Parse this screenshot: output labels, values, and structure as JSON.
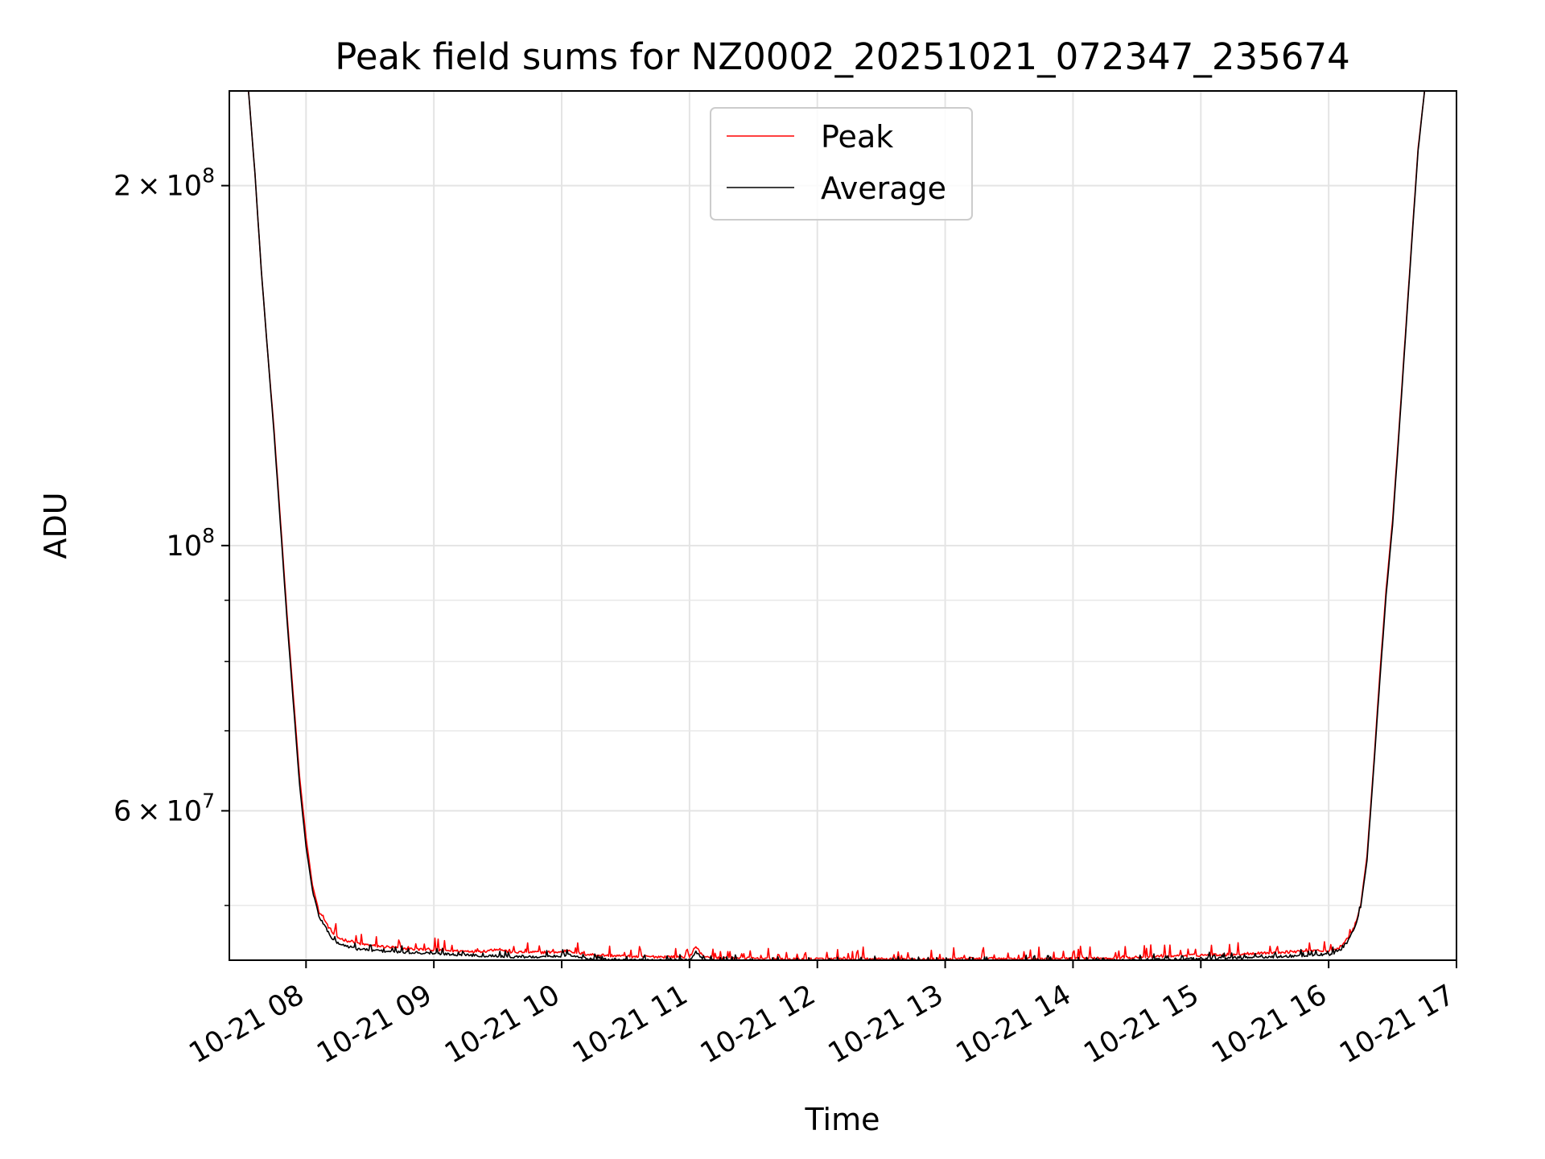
{
  "chart_data": {
    "type": "line",
    "title": "Peak field sums for NZ0002_20251021_072347_235674",
    "xlabel": "Time",
    "ylabel": "ADU",
    "yscale": "log",
    "xlim_hours": [
      7.4,
      17.0
    ],
    "ylim": [
      45000000,
      240000000
    ],
    "grid": true,
    "legend_position": "top-center",
    "x_ticks": [
      {
        "value": 8,
        "label": "10-21 08"
      },
      {
        "value": 9,
        "label": "10-21 09"
      },
      {
        "value": 10,
        "label": "10-21 10"
      },
      {
        "value": 11,
        "label": "10-21 11"
      },
      {
        "value": 12,
        "label": "10-21 12"
      },
      {
        "value": 13,
        "label": "10-21 13"
      },
      {
        "value": 14,
        "label": "10-21 14"
      },
      {
        "value": 15,
        "label": "10-21 15"
      },
      {
        "value": 16,
        "label": "10-21 16"
      },
      {
        "value": 17,
        "label": "10-21 17"
      }
    ],
    "y_ticks": [
      {
        "value": 60000000,
        "mantissa": "6",
        "times": "×",
        "base": "10",
        "exp": "7"
      },
      {
        "value": 100000000,
        "mantissa": "",
        "times": "",
        "base": "10",
        "exp": "8"
      },
      {
        "value": 200000000,
        "mantissa": "2",
        "times": "×",
        "base": "10",
        "exp": "8"
      }
    ],
    "y_minor_ticks": [
      50000000,
      70000000,
      80000000,
      90000000
    ],
    "series": [
      {
        "name": "Peak",
        "color": "#ff0000",
        "x": [
          7.4,
          7.55,
          7.6,
          7.65,
          7.7,
          7.75,
          7.8,
          7.85,
          7.9,
          7.95,
          8.0,
          8.05,
          8.1,
          8.15,
          8.2,
          8.25,
          8.3,
          8.4,
          8.5,
          8.6,
          8.8,
          9.0,
          9.2,
          9.4,
          9.5,
          9.6,
          9.8,
          10.0,
          10.05,
          10.1,
          10.2,
          10.4,
          10.6,
          10.8,
          11.0,
          11.05,
          11.1,
          11.2,
          11.4,
          11.6,
          11.8,
          12.0,
          12.2,
          12.4,
          12.6,
          12.8,
          13.0,
          13.2,
          13.4,
          13.6,
          13.8,
          14.0,
          14.2,
          14.4,
          14.6,
          14.8,
          15.0,
          15.2,
          15.4,
          15.6,
          15.8,
          15.9,
          16.0,
          16.05,
          16.1,
          16.15,
          16.2,
          16.25,
          16.3,
          16.35,
          16.4,
          16.45,
          16.5,
          16.55,
          16.6,
          16.65,
          16.7,
          16.75,
          17.0
        ],
        "y": [
          240000000,
          240000000,
          205000000,
          170000000,
          145000000,
          125000000,
          105000000,
          88000000,
          75000000,
          64000000,
          57000000,
          52000000,
          49500000,
          48500000,
          47500000,
          47000000,
          46800000,
          46500000,
          46300000,
          46200000,
          46000000,
          45900000,
          45800000,
          45800000,
          46000000,
          45700000,
          45700000,
          45700000,
          45900000,
          45700000,
          45500000,
          45400000,
          45300000,
          45300000,
          45300000,
          46200000,
          45400000,
          45200000,
          45200000,
          45150000,
          45100000,
          45100000,
          45100000,
          45100000,
          45100000,
          45100000,
          45100000,
          45150000,
          45150000,
          45150000,
          45150000,
          45150000,
          45200000,
          45250000,
          45300000,
          45400000,
          45450000,
          45500000,
          45600000,
          45700000,
          45800000,
          45900000,
          45800000,
          45900000,
          46300000,
          47000000,
          48000000,
          50000000,
          55000000,
          65000000,
          78000000,
          92000000,
          105000000,
          125000000,
          150000000,
          180000000,
          215000000,
          240000000,
          240000000
        ]
      },
      {
        "name": "Average",
        "color": "#000000",
        "x": [
          7.4,
          7.55,
          7.6,
          7.65,
          7.7,
          7.75,
          7.8,
          7.85,
          7.9,
          7.95,
          8.0,
          8.05,
          8.1,
          8.15,
          8.2,
          8.25,
          8.3,
          8.4,
          8.5,
          8.6,
          8.8,
          9.0,
          9.2,
          9.4,
          9.5,
          9.6,
          9.8,
          10.0,
          10.05,
          10.1,
          10.2,
          10.4,
          10.6,
          10.8,
          11.0,
          11.05,
          11.1,
          11.2,
          11.4,
          11.6,
          11.8,
          12.0,
          12.2,
          12.4,
          12.6,
          12.8,
          13.0,
          13.2,
          13.4,
          13.6,
          13.8,
          14.0,
          14.2,
          14.4,
          14.6,
          14.8,
          15.0,
          15.2,
          15.4,
          15.6,
          15.8,
          15.9,
          16.0,
          16.05,
          16.1,
          16.15,
          16.2,
          16.25,
          16.3,
          16.35,
          16.4,
          16.45,
          16.5,
          16.55,
          16.6,
          16.65,
          16.7,
          16.75,
          17.0
        ],
        "y": [
          240000000,
          240000000,
          205000000,
          170000000,
          145000000,
          124000000,
          104000000,
          87000000,
          74000000,
          63000000,
          56000000,
          51500000,
          49000000,
          48000000,
          47000000,
          46500000,
          46300000,
          46000000,
          45900000,
          45800000,
          45700000,
          45600000,
          45500000,
          45400000,
          45400000,
          45300000,
          45300000,
          45400000,
          45500000,
          45300000,
          45150000,
          45050000,
          45000000,
          45000000,
          45000000,
          45800000,
          45100000,
          44950000,
          44950000,
          44900000,
          44900000,
          44850000,
          44850000,
          44850000,
          44850000,
          44850000,
          44850000,
          44900000,
          44900000,
          44900000,
          44900000,
          44900000,
          44950000,
          45000000,
          45050000,
          45100000,
          45150000,
          45200000,
          45250000,
          45300000,
          45400000,
          45500000,
          45500000,
          45700000,
          46000000,
          46700000,
          47800000,
          49800000,
          54500000,
          64500000,
          77000000,
          91000000,
          104000000,
          124000000,
          149000000,
          179000000,
          214000000,
          240000000,
          240000000
        ]
      }
    ]
  }
}
